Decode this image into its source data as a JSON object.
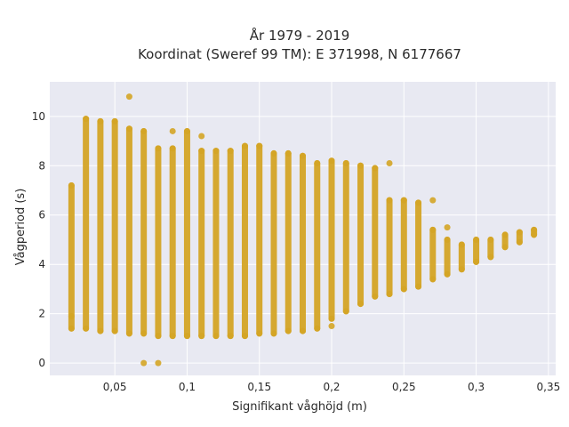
{
  "chart_data": {
    "type": "scatter",
    "title_line1": "År 1979 - 2019",
    "title_line2": "Koordinat (Sweref 99 TM): E 371998, N 6177667",
    "xlabel": "Signifikant våghöjd (m)",
    "ylabel": "Vågperiod (s)",
    "xlim": [
      0.005,
      0.355
    ],
    "ylim": [
      -0.5,
      11.4
    ],
    "x_ticks": [
      0.05,
      0.1,
      0.15,
      0.2,
      0.25,
      0.3,
      0.35
    ],
    "x_tick_labels": [
      "0,05",
      "0,1",
      "0,15",
      "0,2",
      "0,25",
      "0,3",
      "0,35"
    ],
    "y_ticks": [
      0,
      2,
      4,
      6,
      8,
      10
    ],
    "y_tick_labels": [
      "0",
      "2",
      "4",
      "6",
      "8",
      "10"
    ],
    "grid": true,
    "marker_color": "#d4a526",
    "background": "#e8e9f2",
    "columns": [
      {
        "x": 0.02,
        "ymin": 1.4,
        "ymax": 7.2
      },
      {
        "x": 0.03,
        "ymin": 1.4,
        "ymax": 9.9
      },
      {
        "x": 0.04,
        "ymin": 1.3,
        "ymax": 9.8
      },
      {
        "x": 0.05,
        "ymin": 1.3,
        "ymax": 9.8
      },
      {
        "x": 0.06,
        "ymin": 1.2,
        "ymax": 9.5
      },
      {
        "x": 0.07,
        "ymin": 1.2,
        "ymax": 9.4
      },
      {
        "x": 0.08,
        "ymin": 1.1,
        "ymax": 8.7
      },
      {
        "x": 0.09,
        "ymin": 1.1,
        "ymax": 8.7
      },
      {
        "x": 0.1,
        "ymin": 1.1,
        "ymax": 9.4
      },
      {
        "x": 0.11,
        "ymin": 1.1,
        "ymax": 8.6
      },
      {
        "x": 0.12,
        "ymin": 1.1,
        "ymax": 8.6
      },
      {
        "x": 0.13,
        "ymin": 1.1,
        "ymax": 8.6
      },
      {
        "x": 0.14,
        "ymin": 1.1,
        "ymax": 8.8
      },
      {
        "x": 0.15,
        "ymin": 1.2,
        "ymax": 8.8
      },
      {
        "x": 0.16,
        "ymin": 1.2,
        "ymax": 8.5
      },
      {
        "x": 0.17,
        "ymin": 1.3,
        "ymax": 8.5
      },
      {
        "x": 0.18,
        "ymin": 1.3,
        "ymax": 8.4
      },
      {
        "x": 0.19,
        "ymin": 1.4,
        "ymax": 8.1
      },
      {
        "x": 0.2,
        "ymin": 1.8,
        "ymax": 8.2
      },
      {
        "x": 0.21,
        "ymin": 2.1,
        "ymax": 8.1
      },
      {
        "x": 0.22,
        "ymin": 2.4,
        "ymax": 8.0
      },
      {
        "x": 0.23,
        "ymin": 2.7,
        "ymax": 7.9
      },
      {
        "x": 0.24,
        "ymin": 2.8,
        "ymax": 6.6
      },
      {
        "x": 0.25,
        "ymin": 3.0,
        "ymax": 6.6
      },
      {
        "x": 0.26,
        "ymin": 3.1,
        "ymax": 6.5
      },
      {
        "x": 0.27,
        "ymin": 3.4,
        "ymax": 5.4
      },
      {
        "x": 0.28,
        "ymin": 3.6,
        "ymax": 5.0
      },
      {
        "x": 0.29,
        "ymin": 3.8,
        "ymax": 4.8
      },
      {
        "x": 0.3,
        "ymin": 4.1,
        "ymax": 5.0
      },
      {
        "x": 0.31,
        "ymin": 4.3,
        "ymax": 5.0
      },
      {
        "x": 0.32,
        "ymin": 4.7,
        "ymax": 5.2
      },
      {
        "x": 0.33,
        "ymin": 4.9,
        "ymax": 5.3
      },
      {
        "x": 0.34,
        "ymin": 5.2,
        "ymax": 5.4
      }
    ],
    "outliers": [
      {
        "x": 0.06,
        "y": 10.8
      },
      {
        "x": 0.07,
        "y": 0.0
      },
      {
        "x": 0.08,
        "y": 0.0
      },
      {
        "x": 0.02,
        "y": 1.9
      },
      {
        "x": 0.2,
        "y": 1.5
      },
      {
        "x": 0.24,
        "y": 8.1
      },
      {
        "x": 0.27,
        "y": 6.6
      },
      {
        "x": 0.28,
        "y": 5.5
      },
      {
        "x": 0.11,
        "y": 9.2
      },
      {
        "x": 0.09,
        "y": 9.4
      }
    ]
  }
}
